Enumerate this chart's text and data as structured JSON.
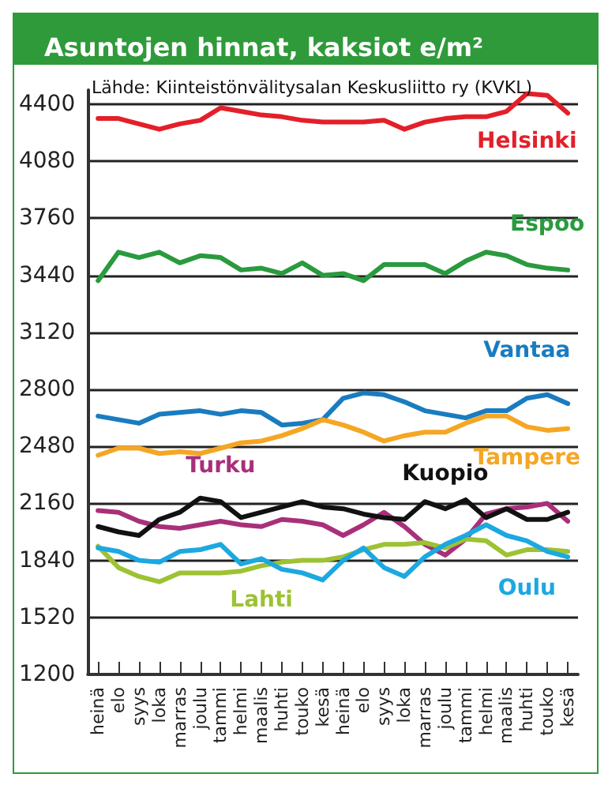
{
  "chart_data": {
    "type": "line",
    "title": "Asuntojen hinnat, kaksiot e/m²",
    "subtitle": "Lähde: Kiinteistönvälitysalan Keskusliitto ry (KVKL)",
    "categories": [
      "heinä",
      "elo",
      "syys",
      "loka",
      "marras",
      "joulu",
      "tammi",
      "helmi",
      "maalis",
      "huhti",
      "touko",
      "kesä",
      "heinä",
      "elo",
      "syys",
      "loka",
      "marras",
      "joulu",
      "tammi",
      "helmi",
      "maalis",
      "huhti",
      "touko",
      "kesä"
    ],
    "ylim": [
      1200,
      4480
    ],
    "yticks": [
      1200,
      1520,
      1840,
      2160,
      2480,
      2800,
      3120,
      3440,
      3760,
      4080,
      4400
    ],
    "grid": "y",
    "legend": false,
    "marker": "none",
    "line_style": "solid",
    "series": [
      {
        "name": "Helsinki",
        "color": "#e3202a",
        "values": [
          4320,
          4320,
          4290,
          4260,
          4290,
          4310,
          4380,
          4360,
          4340,
          4330,
          4310,
          4300,
          4300,
          4300,
          4310,
          4260,
          4300,
          4320,
          4330,
          4330,
          4360,
          4460,
          4450,
          4350
        ]
      },
      {
        "name": "Espoo",
        "color": "#2a9a3e",
        "values": [
          3410,
          3570,
          3540,
          3570,
          3510,
          3550,
          3540,
          3470,
          3480,
          3450,
          3510,
          3440,
          3450,
          3410,
          3500,
          3500,
          3500,
          3450,
          3520,
          3570,
          3550,
          3500,
          3480,
          3470
        ]
      },
      {
        "name": "Vantaa",
        "color": "#1a7cc0",
        "values": [
          2650,
          2630,
          2610,
          2660,
          2670,
          2680,
          2660,
          2680,
          2670,
          2600,
          2610,
          2630,
          2750,
          2780,
          2770,
          2730,
          2680,
          2660,
          2640,
          2680,
          2680,
          2750,
          2770,
          2720
        ]
      },
      {
        "name": "Tampere",
        "color": "#f5a623",
        "values": [
          2430,
          2470,
          2470,
          2440,
          2450,
          2440,
          2470,
          2500,
          2510,
          2540,
          2580,
          2630,
          2600,
          2560,
          2510,
          2540,
          2560,
          2560,
          2610,
          2650,
          2650,
          2590,
          2570,
          2580
        ]
      },
      {
        "name": "Turku",
        "color": "#a8307a",
        "values": [
          2120,
          2110,
          2060,
          2030,
          2020,
          2040,
          2060,
          2040,
          2030,
          2070,
          2060,
          2040,
          1980,
          2040,
          2110,
          2030,
          1930,
          1870,
          1960,
          2100,
          2130,
          2140,
          2160,
          2060
        ]
      },
      {
        "name": "Kuopio",
        "color": "#111111",
        "values": [
          2030,
          2000,
          1980,
          2070,
          2110,
          2190,
          2170,
          2080,
          2110,
          2140,
          2170,
          2140,
          2130,
          2100,
          2080,
          2070,
          2170,
          2130,
          2180,
          2080,
          2130,
          2070,
          2070,
          2110
        ]
      },
      {
        "name": "Lahti",
        "color": "#9dc232",
        "values": [
          1920,
          1800,
          1750,
          1720,
          1770,
          1770,
          1770,
          1780,
          1810,
          1830,
          1840,
          1840,
          1860,
          1900,
          1930,
          1930,
          1940,
          1910,
          1960,
          1950,
          1870,
          1900,
          1900,
          1890
        ]
      },
      {
        "name": "Oulu",
        "color": "#1ca8e0",
        "values": [
          1910,
          1890,
          1840,
          1830,
          1890,
          1900,
          1930,
          1820,
          1850,
          1790,
          1770,
          1730,
          1840,
          1910,
          1800,
          1750,
          1860,
          1930,
          1980,
          2040,
          1980,
          1950,
          1890,
          1860
        ]
      }
    ]
  }
}
